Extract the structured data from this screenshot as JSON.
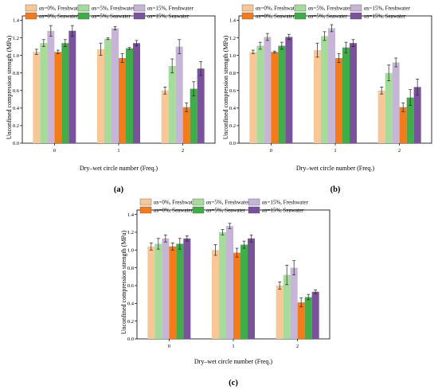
{
  "chart_data": [
    {
      "type": "bar",
      "panel_label": "(a)",
      "xlabel": "Dry–wet circle number (Freq.)",
      "ylabel": "Unconfined compression strength (MPa)",
      "ylim": [
        0,
        1.45
      ],
      "yticks": [
        "0.0",
        "0.2",
        "0.4",
        "0.6",
        "0.8",
        "1.0",
        "1.2",
        "1.4"
      ],
      "categories": [
        "0",
        "1",
        "2"
      ],
      "legend_position": "top",
      "series": [
        {
          "name": "αs=0%, Freshwater",
          "color": "#f9c795",
          "values": [
            1.04,
            1.07,
            0.6
          ],
          "errors": [
            0.03,
            0.07,
            0.04
          ]
        },
        {
          "name": "αs=5%, Freshwater",
          "color": "#a6dc9a",
          "values": [
            1.14,
            1.19,
            0.88
          ],
          "errors": [
            0.04,
            0.01,
            0.08
          ]
        },
        {
          "name": "αs=15%, Freshwater",
          "color": "#c6b5d6",
          "values": [
            1.28,
            1.31,
            1.1
          ],
          "errors": [
            0.06,
            0.02,
            0.08
          ]
        },
        {
          "name": "αs=0%, Seawater",
          "color": "#f57a18",
          "values": [
            1.04,
            0.97,
            0.41
          ],
          "errors": [
            0.02,
            0.05,
            0.05
          ]
        },
        {
          "name": "αs=5%, Seawater",
          "color": "#3fae49",
          "values": [
            1.14,
            1.08,
            0.62
          ],
          "errors": [
            0.04,
            0.01,
            0.08
          ]
        },
        {
          "name": "αs=15%, Seawater",
          "color": "#7a519b",
          "values": [
            1.28,
            1.14,
            0.85
          ],
          "errors": [
            0.06,
            0.03,
            0.08
          ]
        }
      ]
    },
    {
      "type": "bar",
      "panel_label": "(b)",
      "xlabel": "Dry–wet circle number (Freq.)",
      "ylabel": "Unconfined compression strength (MPa)",
      "ylim": [
        0,
        1.45
      ],
      "yticks": [
        "0.0",
        "0.2",
        "0.4",
        "0.6",
        "0.8",
        "1.0",
        "1.2",
        "1.4"
      ],
      "categories": [
        "0",
        "1",
        "2"
      ],
      "legend_position": "top",
      "series": [
        {
          "name": "αs=0%, Freshwater",
          "color": "#f9c795",
          "values": [
            1.04,
            1.06,
            0.6
          ],
          "errors": [
            0.02,
            0.08,
            0.04
          ]
        },
        {
          "name": "αs=5%, Freshwater",
          "color": "#a6dc9a",
          "values": [
            1.11,
            1.22,
            0.8
          ],
          "errors": [
            0.04,
            0.05,
            0.09
          ]
        },
        {
          "name": "αs=15%, Freshwater",
          "color": "#c6b5d6",
          "values": [
            1.21,
            1.31,
            0.92
          ],
          "errors": [
            0.04,
            0.04,
            0.05
          ]
        },
        {
          "name": "αs=0%, Seawater",
          "color": "#f57a18",
          "values": [
            1.04,
            0.97,
            0.41
          ],
          "errors": [
            0.01,
            0.05,
            0.05
          ]
        },
        {
          "name": "αs=5%, Seawater",
          "color": "#3fae49",
          "values": [
            1.11,
            1.09,
            0.52
          ],
          "errors": [
            0.04,
            0.06,
            0.09
          ]
        },
        {
          "name": "αs=15%, Seawater",
          "color": "#7a519b",
          "values": [
            1.21,
            1.14,
            0.64
          ],
          "errors": [
            0.03,
            0.04,
            0.09
          ]
        }
      ]
    },
    {
      "type": "bar",
      "panel_label": "(c)",
      "xlabel": "Dry–wet circle number (Freq.)",
      "ylabel": "Unconfined compression strength (MPa)",
      "ylim": [
        0,
        1.45
      ],
      "yticks": [
        "0.0",
        "0.2",
        "0.4",
        "0.6",
        "0.8",
        "1.0",
        "1.2",
        "1.4"
      ],
      "categories": [
        "0",
        "1",
        "2"
      ],
      "legend_position": "top",
      "series": [
        {
          "name": "αs=0%, Freshwater",
          "color": "#f9c795",
          "values": [
            1.04,
            1.0,
            0.6
          ],
          "errors": [
            0.04,
            0.06,
            0.04
          ]
        },
        {
          "name": "αs=5%, Freshwater",
          "color": "#a6dc9a",
          "values": [
            1.07,
            1.2,
            0.72
          ],
          "errors": [
            0.06,
            0.03,
            0.11
          ]
        },
        {
          "name": "αs=15%, Freshwater",
          "color": "#c6b5d6",
          "values": [
            1.13,
            1.27,
            0.8
          ],
          "errors": [
            0.04,
            0.03,
            0.08
          ]
        },
        {
          "name": "αs=0%, Seawater",
          "color": "#f57a18",
          "values": [
            1.04,
            0.97,
            0.41
          ],
          "errors": [
            0.04,
            0.05,
            0.05
          ]
        },
        {
          "name": "αs=5%, Seawater",
          "color": "#3fae49",
          "values": [
            1.07,
            1.06,
            0.47
          ],
          "errors": [
            0.06,
            0.04,
            0.03
          ]
        },
        {
          "name": "αs=15%, Seawater",
          "color": "#7a519b",
          "values": [
            1.13,
            1.13,
            0.53
          ],
          "errors": [
            0.03,
            0.04,
            0.02
          ]
        }
      ]
    }
  ]
}
